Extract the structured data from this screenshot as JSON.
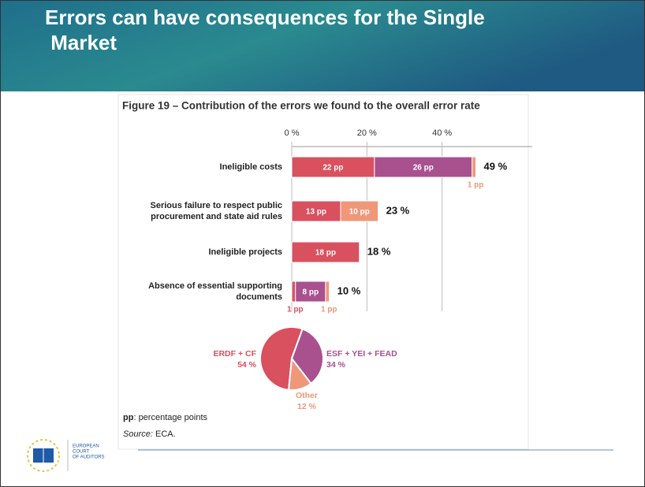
{
  "slide": {
    "title": "Errors can have consequences for the Single Market",
    "logo_text": [
      "EUROPEAN",
      "COURT",
      "OF AUDITORS"
    ]
  },
  "chart_data": [
    {
      "type": "stacked-barh",
      "title": "Figure 19 – Contribution of the errors we found to the overall error rate",
      "categories": [
        "Ineligible costs",
        "Serious failure to respect public procurement and state aid rules",
        "Ineligible projects",
        "Absence of essential supporting documents"
      ],
      "series": [
        {
          "color": "#d9505f",
          "values": [
            22,
            13,
            18,
            1
          ],
          "value_labels": [
            "22 pp",
            "13 pp",
            "18 pp",
            "1 pp"
          ]
        },
        {
          "color": "#a9508f",
          "values": [
            26,
            null,
            null,
            8
          ],
          "value_labels": [
            "26 pp",
            null,
            null,
            "8 pp"
          ]
        },
        {
          "color": "#f0977a",
          "values": [
            1,
            10,
            null,
            1
          ],
          "value_labels": [
            "1 pp",
            "10 pp",
            null,
            "1 pp"
          ]
        }
      ],
      "totals": [
        49,
        23,
        18,
        10
      ],
      "total_labels": [
        "49 %",
        "23 %",
        "18 %",
        "10 %"
      ],
      "xlim": [
        0,
        64
      ],
      "xticks": [
        {
          "value": 0,
          "label": "0 %"
        },
        {
          "value": 20,
          "label": "20 %"
        },
        {
          "value": 40,
          "label": "40 %"
        }
      ],
      "grid": true,
      "notes": [
        {
          "term": "pp",
          "text": ": percentage points"
        },
        {
          "term": "Source:",
          "text": " ECA."
        }
      ]
    },
    {
      "type": "pie",
      "categories": [
        "ERDF + CF",
        "ESF + YEI + FEAD",
        "Other"
      ],
      "values": [
        54,
        34,
        12
      ],
      "value_labels": [
        "54 %",
        "34 %",
        "12 %"
      ],
      "colors": [
        "#d9505f",
        "#a9508f",
        "#f0977a"
      ]
    }
  ]
}
